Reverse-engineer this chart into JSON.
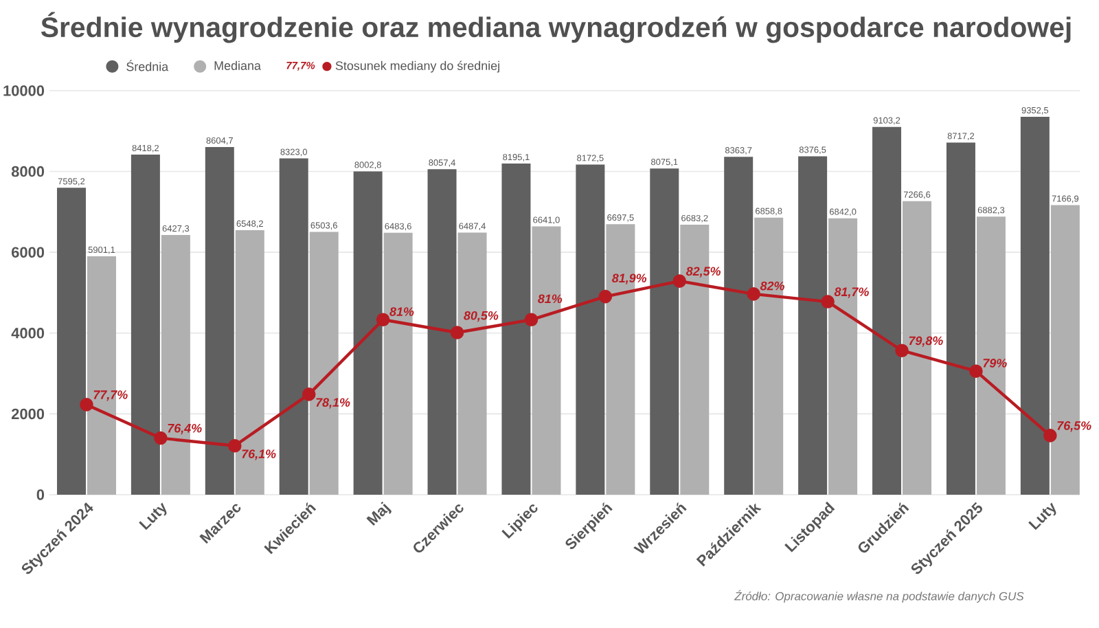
{
  "chart_data": {
    "type": "bar",
    "title": "Średnie wynagrodzenie oraz mediana wynagrodzeń w gospodarce narodowej",
    "categories": [
      "Styczeń 2024",
      "Luty",
      "Marzec",
      "Kwiecień",
      "Maj",
      "Czerwiec",
      "Lipiec",
      "Sierpień",
      "Wrzesień",
      "Październik",
      "Listopad",
      "Grudzień",
      "Styczeń 2025",
      "Luty"
    ],
    "series": [
      {
        "name": "Średnia",
        "color": "#606060",
        "values": [
          7595.2,
          8418.2,
          8604.7,
          8323.0,
          8002.8,
          8057.4,
          8195.1,
          8172.5,
          8075.1,
          8363.7,
          8376.5,
          9103.2,
          8717.2,
          9352.5
        ],
        "value_labels": [
          "7595,2",
          "8418,2",
          "8604,7",
          "8323,0",
          "8002,8",
          "8057,4",
          "8195,1",
          "8172,5",
          "8075,1",
          "8363,7",
          "8376,5",
          "9103,2",
          "8717,2",
          "9352,5"
        ]
      },
      {
        "name": "Mediana",
        "color": "#b0b0b0",
        "values": [
          5901.1,
          6427.3,
          6548.2,
          6503.6,
          6483.6,
          6487.4,
          6641.0,
          6697.5,
          6683.2,
          6858.8,
          6842.0,
          7266.6,
          6882.3,
          7166.9
        ],
        "value_labels": [
          "5901,1",
          "6427,3",
          "6548,2",
          "6503,6",
          "6483,6",
          "6487,4",
          "6641,0",
          "6697,5",
          "6683,2",
          "6858,8",
          "6842,0",
          "7266,6",
          "6882,3",
          "7166,9"
        ]
      },
      {
        "name": "Stosunek mediany do średniej",
        "type": "line",
        "axis": "y2",
        "color": "#b81c22",
        "marker": "circle",
        "values": [
          77.7,
          76.4,
          76.1,
          78.1,
          81,
          80.5,
          81,
          81.9,
          82.5,
          82,
          81.7,
          79.8,
          79,
          76.5
        ],
        "value_labels": [
          "77,7%",
          "76,4%",
          "76,1%",
          "78,1%",
          "81%",
          "80,5%",
          "81%",
          "81,9%",
          "82,5%",
          "82%",
          "81,7%",
          "79,8%",
          "79%",
          "76,5%"
        ]
      }
    ],
    "ylim": [
      0,
      10000
    ],
    "yticks": [
      0,
      2000,
      4000,
      6000,
      8000,
      10000
    ],
    "y2lim": [
      74.2,
      89.9
    ],
    "tick_labels": "xy",
    "grid": "y",
    "legend": "top left",
    "annotations": [
      "Źródło: Opracowanie własne na podstawie danych GUS"
    ]
  }
}
